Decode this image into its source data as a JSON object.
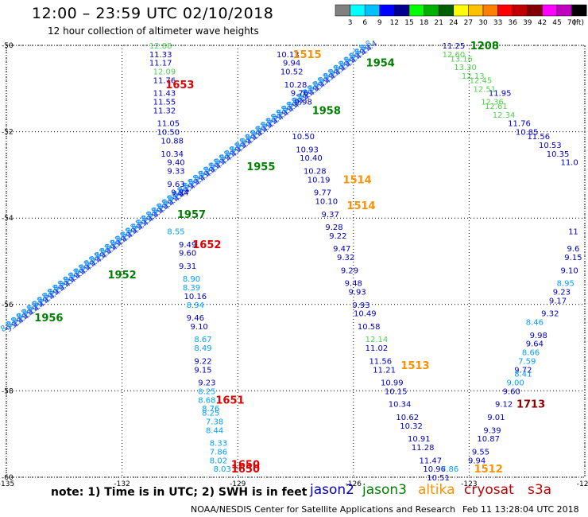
{
  "header": {
    "title": "12:00  –  23:59 UTC 02/10/2018",
    "subtitle": "12 hour collection of altimeter wave heights"
  },
  "legend_scale": {
    "unit": "(ft)",
    "ticks": [
      "3",
      "6",
      "9",
      "12",
      "15",
      "18",
      "21",
      "24",
      "27",
      "30",
      "33",
      "36",
      "39",
      "42",
      "45",
      "70"
    ],
    "colors": [
      "#808080",
      "#00ffff",
      "#00c0ff",
      "#0000ff",
      "#000090",
      "#00ff00",
      "#00b000",
      "#006000",
      "#ffff00",
      "#ffc000",
      "#ff8000",
      "#ff0000",
      "#c00000",
      "#800000",
      "#ff00ff",
      "#c000c0",
      "#000000"
    ]
  },
  "footer": {
    "note": "note: 1) Time is in UTC; 2) SWH is in feet",
    "satellites": [
      {
        "name": "jason2",
        "color": "#0000c0"
      },
      {
        "name": "jason3",
        "color": "#008000"
      },
      {
        "name": "altika",
        "color": "#ff9000"
      },
      {
        "name": "cryosat",
        "color": "#c00000"
      },
      {
        "name": "s3a",
        "color": "#c00000"
      }
    ],
    "credit": "NOAA/NESDIS Center for Satellite Applications and Research",
    "timestamp": "Feb 11 13:28:04 UTC 2018"
  },
  "chart_data": {
    "type": "scatter",
    "x_ticks": [
      "-135",
      "-132",
      "-129",
      "-126",
      "-123",
      "-120"
    ],
    "y_ticks": [
      "-50",
      "-52",
      "-54",
      "-56",
      "-58",
      "-60"
    ],
    "xlim": [
      -135,
      -120
    ],
    "ylim": [
      -60,
      -50
    ],
    "grid": true,
    "track_time_labels": [
      {
        "text": "1653",
        "lon": -130.5,
        "lat": -50.9,
        "color": "#e00000"
      },
      {
        "text": "1652",
        "lon": -129.8,
        "lat": -54.6,
        "color": "#e00000"
      },
      {
        "text": "1651",
        "lon": -129.2,
        "lat": -58.2,
        "color": "#e00000"
      },
      {
        "text": "1650",
        "lon": -128.8,
        "lat": -59.7,
        "color": "#e00000"
      },
      {
        "text": "1650",
        "lon": -128.8,
        "lat": -59.8,
        "color": "#e00000"
      },
      {
        "text": "1515",
        "lon": -127.2,
        "lat": -50.2,
        "color": "#ff9000"
      },
      {
        "text": "1514",
        "lon": -125.9,
        "lat": -53.1,
        "color": "#ff9000"
      },
      {
        "text": "1514",
        "lon": -125.8,
        "lat": -53.7,
        "color": "#ff9000"
      },
      {
        "text": "1513",
        "lon": -124.4,
        "lat": -57.4,
        "color": "#ff9000"
      },
      {
        "text": "1512",
        "lon": -122.5,
        "lat": -59.8,
        "color": "#ff9000"
      },
      {
        "text": "1713",
        "lon": -121.4,
        "lat": -58.3,
        "color": "#900000"
      },
      {
        "text": "1208",
        "lon": -122.6,
        "lat": -50.0,
        "color": "#008000"
      },
      {
        "text": "1954",
        "lon": -125.3,
        "lat": -50.4,
        "color": "#008000"
      },
      {
        "text": "1958",
        "lon": -126.7,
        "lat": -51.5,
        "color": "#008000"
      },
      {
        "text": "1955",
        "lon": -128.4,
        "lat": -52.8,
        "color": "#008000"
      },
      {
        "text": "1957",
        "lon": -130.2,
        "lat": -53.9,
        "color": "#008000"
      },
      {
        "text": "1952",
        "lon": -132.0,
        "lat": -55.3,
        "color": "#008000"
      },
      {
        "text": "1956",
        "lon": -133.9,
        "lat": -56.3,
        "color": "#008000"
      }
    ],
    "series": [
      {
        "name": "jason2",
        "color": "#0000c0",
        "points": [
          {
            "lon": -131.0,
            "lat": -50.2,
            "v": "11.33"
          },
          {
            "lon": -131.0,
            "lat": -50.4,
            "v": "11.17"
          },
          {
            "lon": -130.9,
            "lat": -50.8,
            "v": "11.76"
          },
          {
            "lon": -130.9,
            "lat": -51.1,
            "v": "11.43"
          },
          {
            "lon": -130.9,
            "lat": -51.3,
            "v": "11.55"
          },
          {
            "lon": -130.9,
            "lat": -51.5,
            "v": "11.32"
          },
          {
            "lon": -130.8,
            "lat": -51.8,
            "v": "11.05"
          },
          {
            "lon": -130.8,
            "lat": -52.0,
            "v": "10.50"
          },
          {
            "lon": -130.7,
            "lat": -52.2,
            "v": "10.88"
          },
          {
            "lon": -130.7,
            "lat": -52.5,
            "v": "10.34"
          },
          {
            "lon": -130.6,
            "lat": -52.7,
            "v": "9.40"
          },
          {
            "lon": -130.6,
            "lat": -52.9,
            "v": "9.33"
          },
          {
            "lon": -130.6,
            "lat": -53.2,
            "v": "9.63"
          },
          {
            "lon": -130.5,
            "lat": -53.4,
            "v": "9.84"
          },
          {
            "lon": -130.3,
            "lat": -54.6,
            "v": "9.49"
          },
          {
            "lon": -130.3,
            "lat": -54.8,
            "v": "9.60"
          },
          {
            "lon": -130.3,
            "lat": -55.1,
            "v": "9.31"
          },
          {
            "lon": -130.1,
            "lat": -55.8,
            "v": "10.16"
          },
          {
            "lon": -130.1,
            "lat": -56.3,
            "v": "9.46"
          },
          {
            "lon": -130.0,
            "lat": -56.5,
            "v": "9.10"
          },
          {
            "lon": -129.9,
            "lat": -57.3,
            "v": "9.22"
          },
          {
            "lon": -129.9,
            "lat": -57.5,
            "v": "9.15"
          },
          {
            "lon": -129.8,
            "lat": -57.8,
            "v": "9.23"
          },
          {
            "lon": -127.7,
            "lat": -50.2,
            "v": "10.13"
          },
          {
            "lon": -127.6,
            "lat": -50.4,
            "v": "9.94"
          },
          {
            "lon": -127.6,
            "lat": -50.6,
            "v": "10.52"
          },
          {
            "lon": -127.5,
            "lat": -50.9,
            "v": "10.28"
          },
          {
            "lon": -127.4,
            "lat": -51.1,
            "v": "9.76"
          },
          {
            "lon": -127.3,
            "lat": -51.3,
            "v": "9.98"
          },
          {
            "lon": -127.3,
            "lat": -52.1,
            "v": "10.50"
          },
          {
            "lon": -127.2,
            "lat": -52.4,
            "v": "10.93"
          },
          {
            "lon": -127.1,
            "lat": -52.6,
            "v": "10.40"
          },
          {
            "lon": -127.0,
            "lat": -52.9,
            "v": "10.28"
          },
          {
            "lon": -126.9,
            "lat": -53.1,
            "v": "10.19"
          },
          {
            "lon": -126.8,
            "lat": -53.4,
            "v": "9.77"
          },
          {
            "lon": -126.7,
            "lat": -53.6,
            "v": "10.10"
          },
          {
            "lon": -126.6,
            "lat": -53.9,
            "v": "9.37"
          },
          {
            "lon": -126.5,
            "lat": -54.2,
            "v": "9.28"
          },
          {
            "lon": -126.4,
            "lat": -54.4,
            "v": "9.22"
          },
          {
            "lon": -126.3,
            "lat": -54.7,
            "v": "9.47"
          },
          {
            "lon": -126.2,
            "lat": -54.9,
            "v": "9.32"
          },
          {
            "lon": -126.1,
            "lat": -55.2,
            "v": "9.29"
          },
          {
            "lon": -126.0,
            "lat": -55.5,
            "v": "9.48"
          },
          {
            "lon": -125.9,
            "lat": -55.7,
            "v": "9.93"
          },
          {
            "lon": -125.8,
            "lat": -56.0,
            "v": "9.93"
          },
          {
            "lon": -125.7,
            "lat": -56.2,
            "v": "10.49"
          },
          {
            "lon": -125.6,
            "lat": -56.5,
            "v": "10.58"
          },
          {
            "lon": -125.4,
            "lat": -57.0,
            "v": "11.02"
          },
          {
            "lon": -125.3,
            "lat": -57.3,
            "v": "11.56"
          },
          {
            "lon": -125.2,
            "lat": -57.5,
            "v": "11.21"
          },
          {
            "lon": -125.0,
            "lat": -57.8,
            "v": "10.99"
          },
          {
            "lon": -124.9,
            "lat": -58.0,
            "v": "10.15"
          },
          {
            "lon": -124.8,
            "lat": -58.3,
            "v": "10.34"
          },
          {
            "lon": -124.6,
            "lat": -58.6,
            "v": "10.62"
          },
          {
            "lon": -124.5,
            "lat": -58.8,
            "v": "10.32"
          },
          {
            "lon": -124.3,
            "lat": -59.1,
            "v": "10.91"
          },
          {
            "lon": -124.2,
            "lat": -59.3,
            "v": "11.28"
          },
          {
            "lon": -124.0,
            "lat": -59.6,
            "v": "11.47"
          },
          {
            "lon": -123.9,
            "lat": -59.8,
            "v": "10.96"
          },
          {
            "lon": -123.8,
            "lat": -60.0,
            "v": "10.51"
          },
          {
            "lon": -123.4,
            "lat": -50.0,
            "v": "11.25"
          },
          {
            "lon": -122.2,
            "lat": -51.1,
            "v": "11.95"
          },
          {
            "lon": -121.7,
            "lat": -51.8,
            "v": "11.76"
          },
          {
            "lon": -121.5,
            "lat": -52.0,
            "v": "10.85"
          },
          {
            "lon": -121.2,
            "lat": -52.1,
            "v": "11.56"
          },
          {
            "lon": -120.9,
            "lat": -52.3,
            "v": "10.53"
          },
          {
            "lon": -120.7,
            "lat": -52.5,
            "v": "10.35"
          },
          {
            "lon": -120.4,
            "lat": -52.7,
            "v": "11.0"
          },
          {
            "lon": -120.3,
            "lat": -54.3,
            "v": "11"
          },
          {
            "lon": -120.3,
            "lat": -54.7,
            "v": "9.6"
          },
          {
            "lon": -120.3,
            "lat": -54.9,
            "v": "9.15"
          },
          {
            "lon": -120.4,
            "lat": -55.2,
            "v": "9.10"
          },
          {
            "lon": -120.6,
            "lat": -55.7,
            "v": "9.23"
          },
          {
            "lon": -120.7,
            "lat": -55.9,
            "v": "9.17"
          },
          {
            "lon": -120.9,
            "lat": -56.2,
            "v": "9.32"
          },
          {
            "lon": -121.2,
            "lat": -56.7,
            "v": "9.98"
          },
          {
            "lon": -121.3,
            "lat": -56.9,
            "v": "9.64"
          },
          {
            "lon": -121.6,
            "lat": -57.5,
            "v": "9.72"
          },
          {
            "lon": -121.9,
            "lat": -58.0,
            "v": "9.60"
          },
          {
            "lon": -122.1,
            "lat": -58.3,
            "v": "9.12"
          },
          {
            "lon": -122.3,
            "lat": -58.6,
            "v": "9.01"
          },
          {
            "lon": -122.4,
            "lat": -58.9,
            "v": "9.39"
          },
          {
            "lon": -122.5,
            "lat": -59.1,
            "v": "10.87"
          },
          {
            "lon": -122.7,
            "lat": -59.4,
            "v": "9.55"
          },
          {
            "lon": -122.8,
            "lat": -59.6,
            "v": "9.94"
          }
        ]
      },
      {
        "name": "jason3",
        "color": "#00a0ff",
        "points": [
          {
            "lon": -130.6,
            "lat": -54.3,
            "v": "8.55"
          },
          {
            "lon": -130.2,
            "lat": -55.4,
            "v": "8.90"
          },
          {
            "lon": -130.2,
            "lat": -55.6,
            "v": "8.39"
          },
          {
            "lon": -130.1,
            "lat": -56.0,
            "v": "8.94"
          },
          {
            "lon": -129.9,
            "lat": -56.8,
            "v": "8.67"
          },
          {
            "lon": -129.9,
            "lat": -57.0,
            "v": "8.49"
          },
          {
            "lon": -129.8,
            "lat": -58.0,
            "v": "8.25"
          },
          {
            "lon": -129.8,
            "lat": -58.2,
            "v": "8.68"
          },
          {
            "lon": -129.7,
            "lat": -58.4,
            "v": "8.76"
          },
          {
            "lon": -129.7,
            "lat": -58.5,
            "v": "8.25"
          },
          {
            "lon": -129.6,
            "lat": -58.7,
            "v": "7.38"
          },
          {
            "lon": -129.6,
            "lat": -58.9,
            "v": "8.44"
          },
          {
            "lon": -129.5,
            "lat": -59.2,
            "v": "8.33"
          },
          {
            "lon": -129.5,
            "lat": -59.4,
            "v": "7.86"
          },
          {
            "lon": -129.5,
            "lat": -59.6,
            "v": "8.02"
          },
          {
            "lon": -129.4,
            "lat": -59.8,
            "v": "8.03"
          },
          {
            "lon": -121.3,
            "lat": -56.4,
            "v": "8.46"
          },
          {
            "lon": -121.4,
            "lat": -57.1,
            "v": "8.66"
          },
          {
            "lon": -121.5,
            "lat": -57.3,
            "v": "7.59"
          },
          {
            "lon": -121.6,
            "lat": -57.6,
            "v": "8.41"
          },
          {
            "lon": -121.8,
            "lat": -57.8,
            "v": "9.00"
          },
          {
            "lon": -120.5,
            "lat": -55.5,
            "v": "8.95"
          },
          {
            "lon": -123.5,
            "lat": -59.8,
            "v": "7.86"
          }
        ]
      },
      {
        "name": "jason3-green",
        "color": "#50d050",
        "points": [
          {
            "lon": -131.0,
            "lat": -50.0,
            "v": "12.88"
          },
          {
            "lon": -130.9,
            "lat": -50.6,
            "v": "12.09"
          },
          {
            "lon": -125.4,
            "lat": -56.8,
            "v": "12.14"
          },
          {
            "lon": -123.4,
            "lat": -50.2,
            "v": "12.60"
          },
          {
            "lon": -123.2,
            "lat": -50.3,
            "v": "13.16"
          },
          {
            "lon": -123.1,
            "lat": -50.5,
            "v": "13.30"
          },
          {
            "lon": -122.9,
            "lat": -50.7,
            "v": "12.13"
          },
          {
            "lon": -122.7,
            "lat": -50.8,
            "v": "12.45"
          },
          {
            "lon": -122.6,
            "lat": -51.0,
            "v": "12.51"
          },
          {
            "lon": -122.4,
            "lat": -51.3,
            "v": "12.36"
          },
          {
            "lon": -122.3,
            "lat": -51.4,
            "v": "12.61"
          },
          {
            "lon": -122.1,
            "lat": -51.6,
            "v": "12.34"
          }
        ]
      }
    ],
    "swath": {
      "name": "diagonal track (overplotted)",
      "color": "#1090ff",
      "from": {
        "lon": -135.0,
        "lat": -56.5
      },
      "to": {
        "lon": -125.7,
        "lat": -50.0
      }
    }
  }
}
